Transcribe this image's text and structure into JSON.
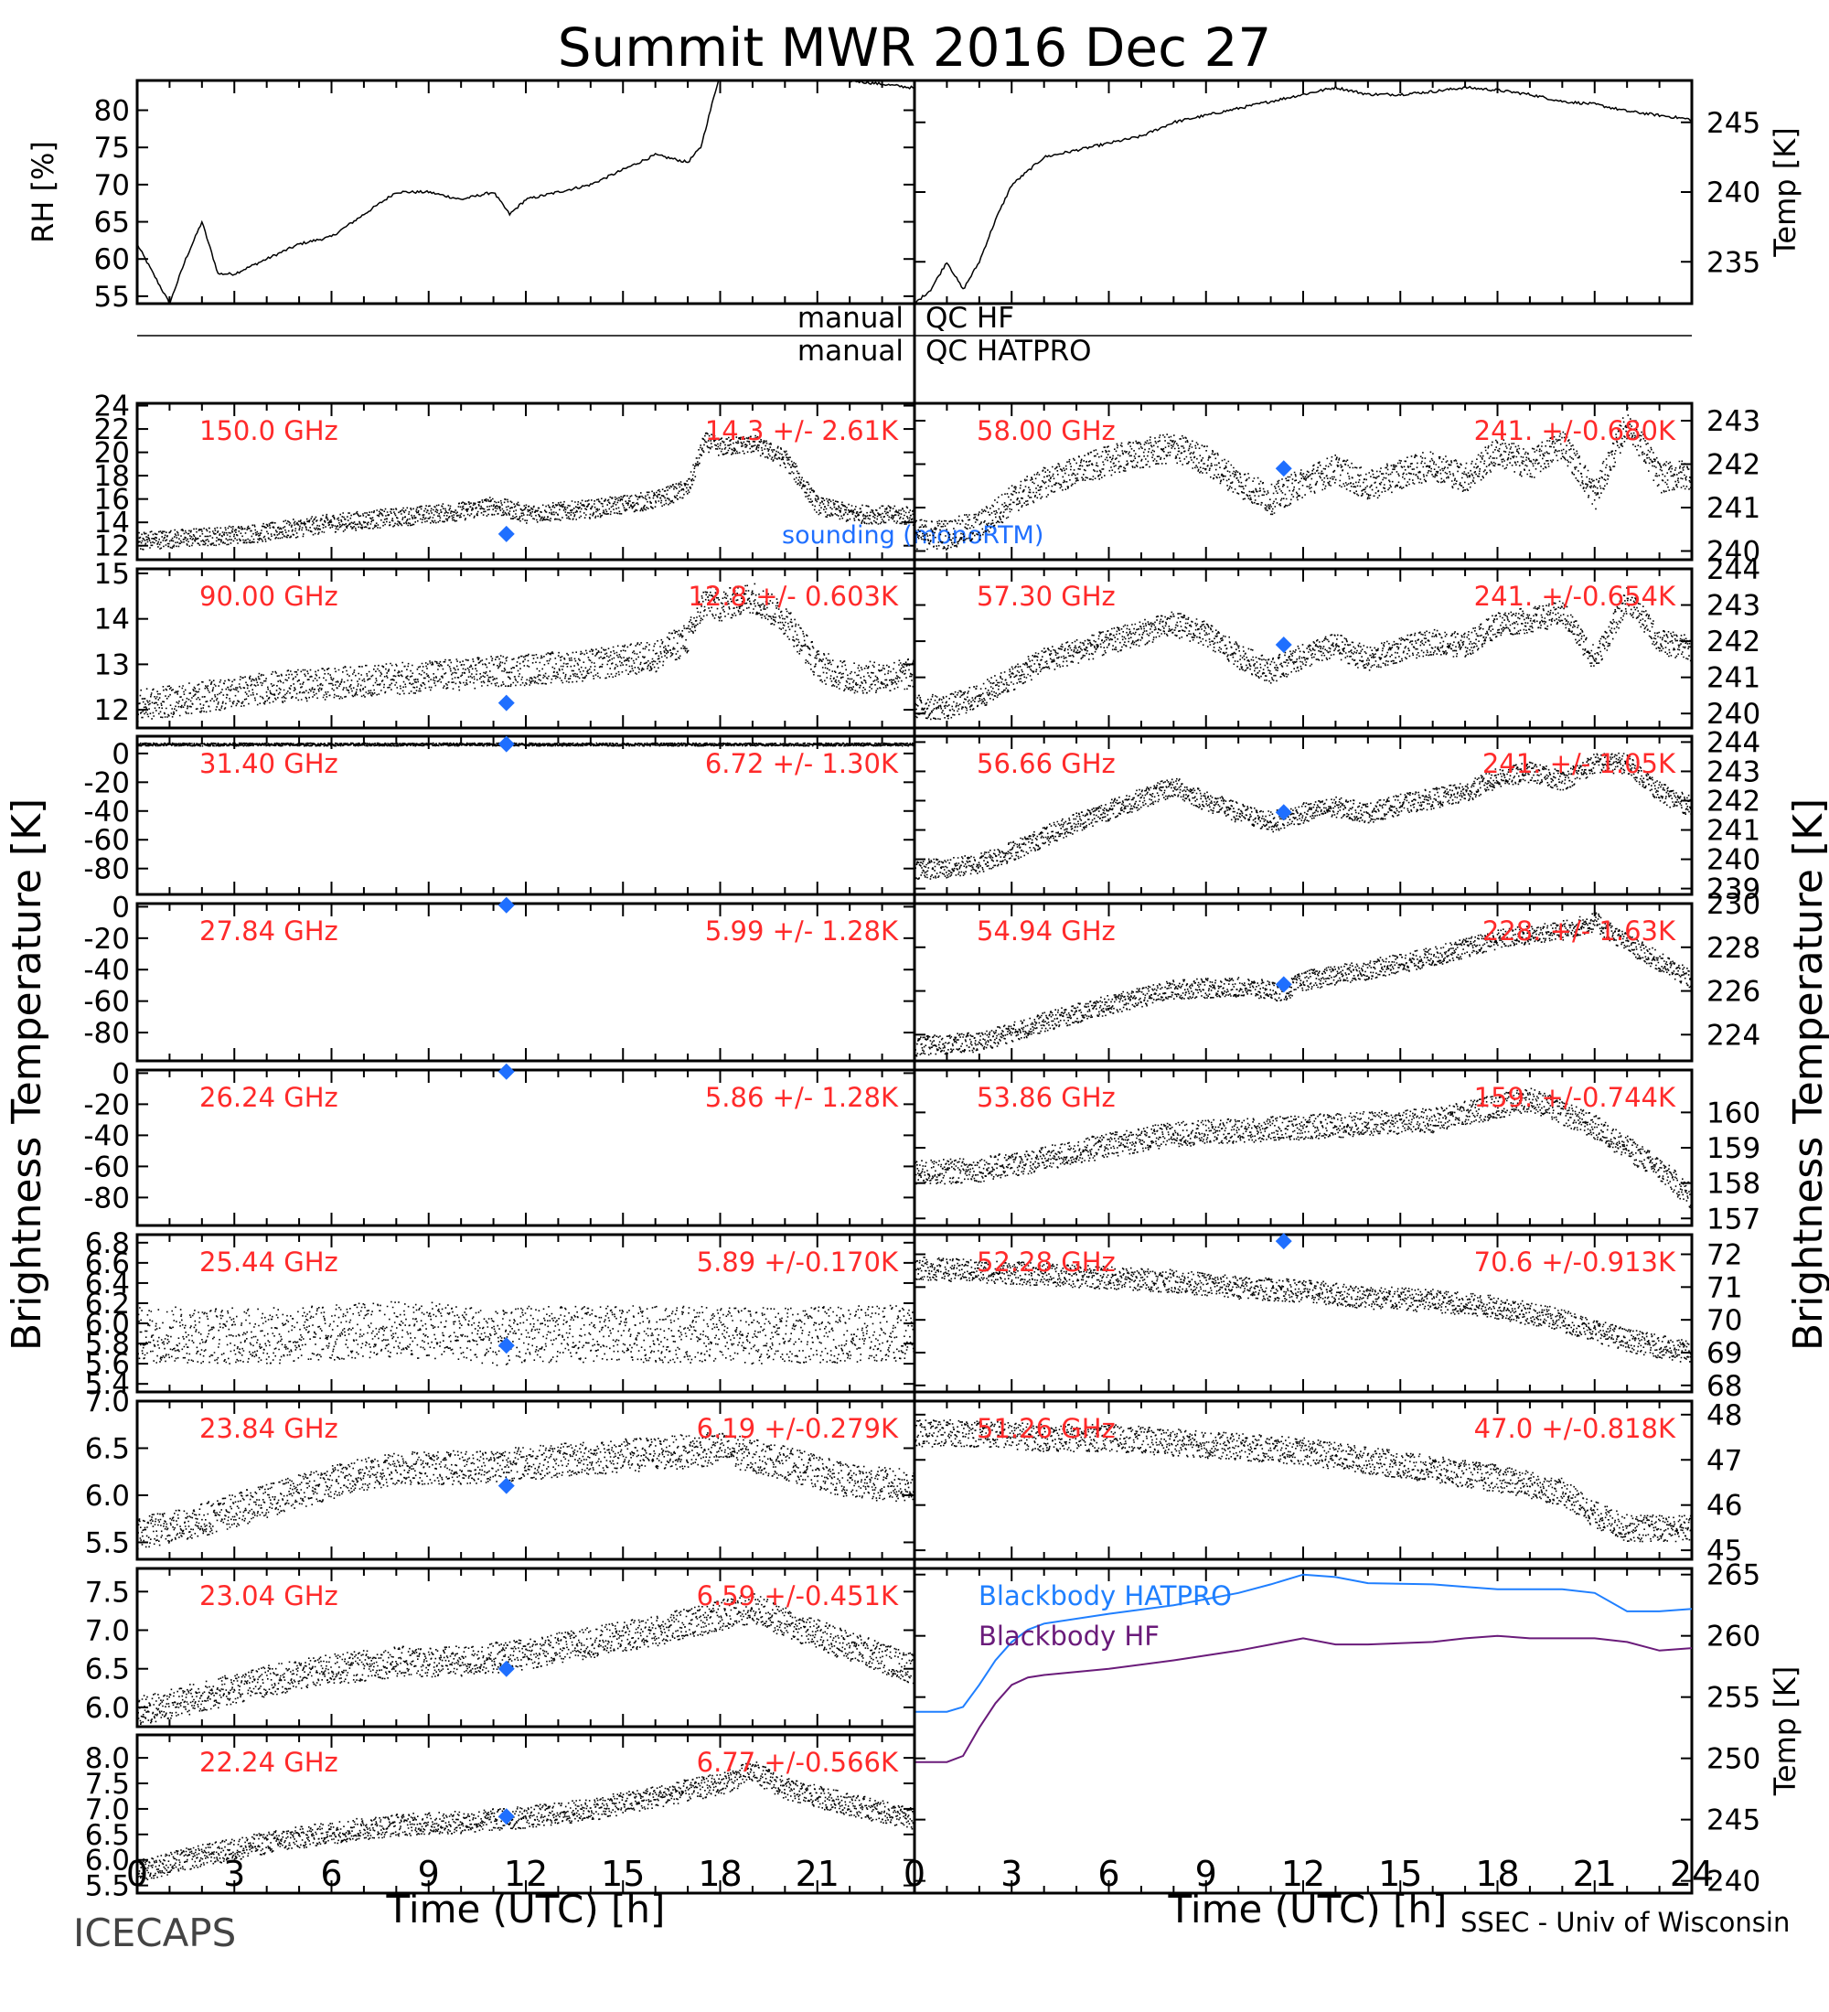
{
  "title": "Summit MWR 2016 Dec 27",
  "footer": {
    "left": "ICECAPS",
    "right": "SSEC - Univ of Wisconsin",
    "xlabel_left": "Time (UTC) [h]",
    "xlabel_right": "Time (UTC) [h]"
  },
  "side_labels": {
    "left_main": "Brightness Temperature [K]",
    "right_main": "Brightness Temperature [K]"
  },
  "qc": {
    "hf_left": "manual",
    "hf_right": "QC HF",
    "hatpro_left": "manual",
    "hatpro_right": "QC HATPRO"
  },
  "colors": {
    "label": "#ff2a2a",
    "marker": "#1f6fff",
    "hatpro": "#1f7fff",
    "hf": "#6a1b7a",
    "trace": "#000000"
  },
  "chart_data": [
    {
      "id": "rh",
      "type": "line",
      "ylabel": "RH [%]",
      "xlim": [
        0,
        24
      ],
      "ylim": [
        54,
        84
      ],
      "yticks": [
        "55",
        "60",
        "65",
        "70",
        "75",
        "80"
      ],
      "x": [
        0,
        0.5,
        1,
        1.5,
        2,
        2.5,
        3,
        3.5,
        4,
        5,
        6,
        7,
        8,
        9,
        10,
        11,
        11.5,
        12,
        13,
        14,
        15,
        16,
        17,
        17.4,
        18,
        19,
        20,
        21,
        22,
        23,
        24
      ],
      "y": [
        62,
        58,
        54,
        60,
        65,
        58,
        58,
        59,
        60,
        62,
        63,
        66,
        69,
        69,
        68,
        69,
        66,
        68,
        69,
        70,
        72,
        74,
        73,
        75,
        85,
        85,
        85,
        85,
        84,
        83.5,
        83
      ]
    },
    {
      "id": "temp",
      "type": "line",
      "ylabel": "Temp [K]",
      "xlim": [
        0,
        24
      ],
      "ylim": [
        232,
        248
      ],
      "yticks": [
        "235",
        "240",
        "245"
      ],
      "x": [
        0,
        0.5,
        1,
        1.5,
        2,
        2.5,
        3,
        4,
        5,
        6,
        7,
        8,
        9,
        10,
        11,
        12,
        13,
        14,
        15,
        16,
        17,
        18,
        19,
        20,
        21,
        22,
        23,
        24
      ],
      "y": [
        232,
        233,
        235,
        233,
        235,
        238,
        240.5,
        242.5,
        243,
        243.5,
        244,
        245,
        245.5,
        246,
        246.5,
        247,
        247.5,
        247,
        247,
        247.2,
        247.5,
        247.3,
        247,
        246.5,
        246.3,
        245.8,
        245.5,
        245.2
      ]
    },
    {
      "id": "ch150",
      "type": "scatter",
      "label": "150.0 GHz",
      "stat": "14.3 +/- 2.61K",
      "side": "left",
      "xlim": [
        0,
        24
      ],
      "ylim": [
        10.8,
        24.2
      ],
      "yticks": [
        "12",
        "14",
        "16",
        "18",
        "20",
        "22",
        "24"
      ],
      "x": [
        0,
        2,
        4,
        6,
        8,
        10,
        11,
        12,
        14,
        16,
        17,
        17.5,
        18,
        19,
        20,
        21,
        22,
        24
      ],
      "y": [
        12.5,
        12.8,
        13.2,
        14,
        14.5,
        15,
        15.5,
        14.8,
        15.2,
        16,
        17,
        21,
        20.5,
        20.8,
        19.5,
        15.5,
        14.8,
        14.6
      ],
      "noise": 0.8,
      "sounding": [
        11.4,
        13.0
      ],
      "note": "sounding (monoRTM)"
    },
    {
      "id": "ch58",
      "type": "scatter",
      "label": "58.00 GHz",
      "stat": "241. +/-0.680K",
      "side": "right",
      "xlim": [
        0,
        24
      ],
      "ylim": [
        239.8,
        243.4
      ],
      "yticks": [
        "240",
        "241",
        "242",
        "243"
      ],
      "x": [
        0,
        1,
        2,
        3,
        4,
        6,
        8,
        9,
        10,
        11,
        12,
        13,
        14,
        15,
        16,
        17,
        18,
        19,
        20,
        21,
        22,
        23,
        24
      ],
      "y": [
        240.4,
        240.4,
        240.6,
        241.2,
        241.6,
        242.1,
        242.4,
        242.1,
        241.6,
        241.2,
        241.6,
        241.9,
        241.5,
        241.8,
        242.0,
        241.7,
        242.3,
        242.0,
        242.5,
        241.3,
        243.0,
        241.7,
        241.8
      ],
      "noise": 0.35,
      "sounding": [
        11.4,
        241.9
      ]
    },
    {
      "id": "ch90",
      "type": "scatter",
      "label": "90.00 GHz",
      "stat": "12.8 +/- 0.603K",
      "side": "left",
      "xlim": [
        0,
        24
      ],
      "ylim": [
        11.6,
        15.1
      ],
      "yticks": [
        "12",
        "13",
        "14",
        "15"
      ],
      "x": [
        0,
        2,
        4,
        6,
        8,
        10,
        12,
        14,
        16,
        17,
        17.5,
        18,
        19,
        20,
        21,
        22,
        24
      ],
      "y": [
        12.1,
        12.3,
        12.5,
        12.6,
        12.7,
        12.8,
        12.9,
        13.0,
        13.2,
        13.6,
        14.4,
        14.3,
        14.5,
        14.0,
        13.0,
        12.7,
        12.8
      ],
      "noise": 0.35,
      "sounding": [
        11.4,
        12.15
      ]
    },
    {
      "id": "ch573",
      "type": "scatter",
      "label": "57.30 GHz",
      "stat": "241. +/-0.654K",
      "side": "right",
      "xlim": [
        0,
        24
      ],
      "ylim": [
        239.6,
        244.0
      ],
      "yticks": [
        "240",
        "241",
        "242",
        "243",
        "244"
      ],
      "x": [
        0,
        1,
        2,
        3,
        4,
        6,
        8,
        9,
        10,
        11,
        12,
        13,
        14,
        15,
        16,
        17,
        18,
        19,
        20,
        21,
        22,
        23,
        24
      ],
      "y": [
        240.2,
        240.2,
        240.5,
        241.0,
        241.5,
        242.0,
        242.5,
        242.2,
        241.6,
        241.2,
        241.6,
        241.9,
        241.5,
        241.8,
        242.0,
        241.9,
        242.5,
        242.6,
        242.8,
        241.5,
        243.2,
        242.0,
        241.8
      ],
      "noise": 0.35,
      "sounding": [
        11.4,
        241.9
      ]
    },
    {
      "id": "ch314",
      "type": "scatter",
      "label": "31.40 GHz",
      "stat": "6.72 +/- 1.30K",
      "side": "left",
      "xlim": [
        0,
        24
      ],
      "ylim": [
        -98,
        12
      ],
      "yticks": [
        "0",
        "-20",
        "-40",
        "-60",
        "-80"
      ],
      "x": [
        0,
        24
      ],
      "y": [
        6.7,
        6.7
      ],
      "noise": 1.0,
      "sounding": [
        11.4,
        6.5
      ]
    },
    {
      "id": "ch5666",
      "type": "scatter",
      "label": "56.66 GHz",
      "stat": "241. +/- 1.05K",
      "side": "right",
      "xlim": [
        0,
        24
      ],
      "ylim": [
        238.8,
        244.2
      ],
      "yticks": [
        "239",
        "240",
        "241",
        "242",
        "243",
        "244"
      ],
      "x": [
        0,
        1,
        2,
        3,
        4,
        5,
        6,
        7,
        8,
        9,
        10,
        11,
        12,
        13,
        14,
        15,
        16,
        17,
        18,
        19,
        20,
        21,
        22,
        23,
        24
      ],
      "y": [
        239.7,
        239.7,
        239.9,
        240.3,
        240.8,
        241.3,
        241.7,
        242.1,
        242.5,
        242.0,
        241.6,
        241.3,
        241.6,
        241.8,
        241.6,
        241.9,
        242.1,
        242.3,
        242.8,
        243.0,
        242.7,
        243.3,
        243.3,
        242.3,
        241.8
      ],
      "noise": 0.35,
      "sounding": [
        11.4,
        241.6
      ]
    },
    {
      "id": "ch2784",
      "type": "scatter",
      "label": "27.84 GHz",
      "stat": "5.99 +/- 1.28K",
      "side": "left",
      "xlim": [
        0,
        24
      ],
      "ylim": [
        -98,
        2
      ],
      "yticks": [
        "0",
        "-20",
        "-40",
        "-60",
        "-80"
      ],
      "x": [],
      "y": [],
      "noise": 0,
      "sounding": [
        11.4,
        1.0
      ]
    },
    {
      "id": "ch5494",
      "type": "scatter",
      "label": "54.94 GHz",
      "stat": "228. +/- 1.63K",
      "side": "right",
      "xlim": [
        0,
        24
      ],
      "ylim": [
        222.8,
        230.0
      ],
      "yticks": [
        "224",
        "226",
        "228",
        "230"
      ],
      "x": [
        0,
        2,
        4,
        6,
        8,
        10,
        11.4,
        12,
        14,
        16,
        18,
        20,
        21,
        22,
        24
      ],
      "y": [
        223.5,
        223.7,
        224.6,
        225.4,
        226.1,
        226.2,
        226.0,
        226.5,
        227.0,
        227.6,
        228.4,
        228.8,
        229.2,
        228.2,
        226.5
      ],
      "noise": 0.45,
      "sounding": [
        11.4,
        226.3
      ]
    },
    {
      "id": "ch2624",
      "type": "scatter",
      "label": "26.24 GHz",
      "stat": "5.86 +/- 1.28K",
      "side": "left",
      "xlim": [
        0,
        24
      ],
      "ylim": [
        -98,
        2
      ],
      "yticks": [
        "0",
        "-20",
        "-40",
        "-60",
        "-80"
      ],
      "x": [],
      "y": [],
      "noise": 0,
      "sounding": [
        11.4,
        1.0
      ]
    },
    {
      "id": "ch5386",
      "type": "scatter",
      "label": "53.86 GHz",
      "stat": "159. +/-0.744K",
      "side": "right",
      "xlim": [
        0,
        24
      ],
      "ylim": [
        156.8,
        161.2
      ],
      "yticks": [
        "157",
        "158",
        "159",
        "160"
      ],
      "x": [
        0,
        2,
        4,
        6,
        8,
        10,
        12,
        14,
        16,
        18,
        19,
        20,
        21,
        22,
        23,
        24
      ],
      "y": [
        158.3,
        158.4,
        158.7,
        159.1,
        159.4,
        159.5,
        159.6,
        159.7,
        159.8,
        160.2,
        160.4,
        160.0,
        159.6,
        159.0,
        158.4,
        157.6
      ],
      "noise": 0.35
    },
    {
      "id": "ch2544",
      "type": "scatter",
      "label": "25.44 GHz",
      "stat": "5.89 +/-0.170K",
      "side": "left",
      "xlim": [
        0,
        24
      ],
      "ylim": [
        5.32,
        6.88
      ],
      "yticks": [
        "5.4",
        "5.6",
        "5.8",
        "6.0",
        "6.2",
        "6.4",
        "6.6",
        "6.8"
      ],
      "x": [
        0,
        4,
        8,
        10,
        11.4,
        12,
        16,
        20,
        24
      ],
      "y": [
        5.9,
        5.88,
        5.95,
        5.92,
        5.85,
        5.9,
        5.9,
        5.88,
        5.92
      ],
      "noise": 0.28,
      "sounding": [
        11.4,
        5.78
      ]
    },
    {
      "id": "ch5226",
      "type": "scatter",
      "label": "52.28 GHz",
      "stat": "70.6 +/-0.913K",
      "side": "right",
      "xlim": [
        0,
        24
      ],
      "ylim": [
        67.8,
        72.6
      ],
      "yticks": [
        "68",
        "69",
        "70",
        "71",
        "72"
      ],
      "x": [
        0,
        2,
        4,
        6,
        8,
        10,
        12,
        14,
        16,
        18,
        20,
        22,
        24
      ],
      "y": [
        71.6,
        71.5,
        71.4,
        71.3,
        71.2,
        71.0,
        70.9,
        70.7,
        70.6,
        70.4,
        70.0,
        69.4,
        69.0
      ],
      "noise": 0.35,
      "sounding": [
        11.4,
        72.4
      ]
    },
    {
      "id": "ch2384",
      "type": "scatter",
      "label": "23.84 GHz",
      "stat": "6.19 +/-0.279K",
      "side": "left",
      "xlim": [
        0,
        24
      ],
      "ylim": [
        5.32,
        7.0
      ],
      "yticks": [
        "5.5",
        "6.0",
        "6.5",
        "7.0"
      ],
      "x": [
        0,
        2,
        4,
        6,
        8,
        10,
        12,
        14,
        16,
        18,
        20,
        22,
        24
      ],
      "y": [
        5.6,
        5.75,
        5.95,
        6.15,
        6.3,
        6.3,
        6.35,
        6.4,
        6.45,
        6.5,
        6.35,
        6.15,
        6.1
      ],
      "noise": 0.18,
      "sounding": [
        11.4,
        6.1
      ]
    },
    {
      "id": "ch5126",
      "type": "scatter",
      "label": "51.26 GHz",
      "stat": "47.0 +/-0.818K",
      "side": "right",
      "xlim": [
        0,
        24
      ],
      "ylim": [
        44.8,
        48.3
      ],
      "yticks": [
        "45",
        "46",
        "47",
        "48"
      ],
      "x": [
        0,
        2,
        4,
        6,
        8,
        10,
        12,
        14,
        16,
        18,
        20,
        21,
        22,
        24
      ],
      "y": [
        47.6,
        47.6,
        47.5,
        47.5,
        47.4,
        47.3,
        47.2,
        47.0,
        46.8,
        46.6,
        46.3,
        45.8,
        45.5,
        45.5
      ],
      "noise": 0.3
    },
    {
      "id": "ch2304",
      "type": "scatter",
      "label": "23.04 GHz",
      "stat": "6.59 +/-0.451K",
      "side": "left",
      "xlim": [
        0,
        24
      ],
      "ylim": [
        5.75,
        7.8
      ],
      "yticks": [
        "6.0",
        "6.5",
        "7.0",
        "7.5"
      ],
      "x": [
        0,
        2,
        4,
        6,
        8,
        10,
        12,
        14,
        16,
        18,
        19,
        20,
        22,
        24
      ],
      "y": [
        5.95,
        6.15,
        6.35,
        6.5,
        6.6,
        6.6,
        6.7,
        6.85,
        7.0,
        7.2,
        7.3,
        7.1,
        6.8,
        6.5
      ],
      "noise": 0.2,
      "sounding": [
        11.4,
        6.5
      ]
    },
    {
      "id": "blackbody",
      "type": "line",
      "ylabel": "Temp [K]",
      "side": "right",
      "xlim": [
        0,
        24
      ],
      "ylim": [
        239,
        265.5
      ],
      "yticks": [
        "240",
        "245",
        "250",
        "255",
        "260",
        "265"
      ],
      "series": [
        {
          "name": "Blackbody HATPRO",
          "color": "#1f7fff",
          "x": [
            0,
            1,
            1.5,
            2,
            2.5,
            3,
            3.5,
            4,
            6,
            8,
            10,
            11,
            12,
            13,
            14,
            16,
            17,
            18,
            19,
            20,
            21,
            22,
            23,
            24
          ],
          "y": [
            253.8,
            253.8,
            254.2,
            256,
            258,
            259.5,
            260.5,
            261,
            261.8,
            262.5,
            263.5,
            264.2,
            265,
            264.8,
            264.3,
            264.2,
            264,
            263.8,
            263.8,
            263.8,
            263.5,
            262,
            262,
            262.2
          ]
        },
        {
          "name": "Blackbody HF",
          "color": "#6a1b7a",
          "x": [
            0,
            1,
            1.5,
            2,
            2.5,
            3,
            3.5,
            4,
            6,
            8,
            10,
            11,
            12,
            13,
            14,
            16,
            17,
            18,
            19,
            20,
            21,
            22,
            23,
            24
          ],
          "y": [
            249.7,
            249.7,
            250.2,
            252.5,
            254.5,
            256,
            256.6,
            256.8,
            257.3,
            258,
            258.8,
            259.3,
            259.8,
            259.3,
            259.3,
            259.5,
            259.8,
            260,
            259.8,
            259.8,
            259.8,
            259.5,
            258.8,
            259
          ]
        }
      ]
    },
    {
      "id": "ch2224",
      "type": "scatter",
      "label": "22.24 GHz",
      "stat": "6.77 +/-0.566K",
      "side": "left",
      "xlim": [
        0,
        24
      ],
      "ylim": [
        5.35,
        8.45
      ],
      "yticks": [
        "5.5",
        "6.0",
        "6.5",
        "7.0",
        "7.5",
        "8.0"
      ],
      "x": [
        0,
        2,
        4,
        6,
        8,
        10,
        12,
        14,
        16,
        18,
        19,
        20,
        22,
        24
      ],
      "y": [
        5.8,
        6.1,
        6.35,
        6.55,
        6.7,
        6.75,
        6.85,
        7.0,
        7.25,
        7.5,
        7.75,
        7.4,
        7.1,
        6.8
      ],
      "noise": 0.22,
      "sounding": [
        11.4,
        6.85
      ]
    }
  ],
  "x_ticks_left": [
    "0",
    "3",
    "6",
    "9",
    "12",
    "15",
    "18",
    "21"
  ],
  "x_ticks_right": [
    "0",
    "3",
    "6",
    "9",
    "12",
    "15",
    "18",
    "21",
    "24"
  ]
}
